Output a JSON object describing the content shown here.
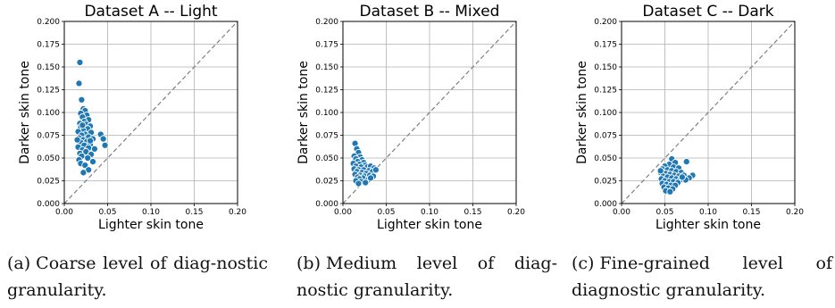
{
  "chart_data": [
    {
      "type": "scatter",
      "title": "Dataset A -- Light",
      "xlabel": "Lighter skin tone",
      "ylabel": "Darker skin tone",
      "xlim": [
        0,
        0.2
      ],
      "ylim": [
        0,
        0.2
      ],
      "xticks": [
        "0.00",
        "0.05",
        "0.10",
        "0.15",
        "0.20"
      ],
      "yticks": [
        "0.000",
        "0.025",
        "0.050",
        "0.075",
        "0.100",
        "0.125",
        "0.150",
        "0.175",
        "0.200"
      ],
      "grid": true,
      "reference_line": "diagonal y = x (dashed gray)",
      "marker_color": "#1f77b4",
      "points": [
        [
          0.018,
          0.155
        ],
        [
          0.017,
          0.132
        ],
        [
          0.02,
          0.114
        ],
        [
          0.022,
          0.104
        ],
        [
          0.024,
          0.102
        ],
        [
          0.019,
          0.099
        ],
        [
          0.026,
          0.097
        ],
        [
          0.021,
          0.095
        ],
        [
          0.028,
          0.092
        ],
        [
          0.023,
          0.09
        ],
        [
          0.018,
          0.088
        ],
        [
          0.025,
          0.087
        ],
        [
          0.03,
          0.085
        ],
        [
          0.019,
          0.084
        ],
        [
          0.027,
          0.082
        ],
        [
          0.022,
          0.08
        ],
        [
          0.016,
          0.079
        ],
        [
          0.031,
          0.078
        ],
        [
          0.024,
          0.076
        ],
        [
          0.02,
          0.075
        ],
        [
          0.042,
          0.076
        ],
        [
          0.045,
          0.071
        ],
        [
          0.028,
          0.073
        ],
        [
          0.017,
          0.072
        ],
        [
          0.033,
          0.071
        ],
        [
          0.022,
          0.07
        ],
        [
          0.026,
          0.068
        ],
        [
          0.019,
          0.067
        ],
        [
          0.047,
          0.064
        ],
        [
          0.03,
          0.065
        ],
        [
          0.023,
          0.064
        ],
        [
          0.016,
          0.062
        ],
        [
          0.028,
          0.061
        ],
        [
          0.021,
          0.059
        ],
        [
          0.025,
          0.057
        ],
        [
          0.018,
          0.055
        ],
        [
          0.031,
          0.054
        ],
        [
          0.02,
          0.052
        ],
        [
          0.027,
          0.05
        ],
        [
          0.017,
          0.048
        ],
        [
          0.033,
          0.046
        ],
        [
          0.019,
          0.044
        ],
        [
          0.024,
          0.042
        ],
        [
          0.028,
          0.037
        ],
        [
          0.022,
          0.034
        ],
        [
          0.03,
          0.069
        ],
        [
          0.015,
          0.07
        ],
        [
          0.035,
          0.06
        ],
        [
          0.021,
          0.086
        ]
      ]
    },
    {
      "type": "scatter",
      "title": "Dataset B -- Mixed",
      "xlabel": "Lighter skin tone",
      "ylabel": "Darker skin tone",
      "xlim": [
        0,
        0.2
      ],
      "ylim": [
        0,
        0.2
      ],
      "xticks": [
        "0.00",
        "0.05",
        "0.10",
        "0.15",
        "0.20"
      ],
      "yticks": [
        "0.000",
        "0.025",
        "0.050",
        "0.075",
        "0.100",
        "0.125",
        "0.150",
        "0.175",
        "0.200"
      ],
      "grid": true,
      "reference_line": "diagonal y = x (dashed gray)",
      "marker_color": "#1f77b4",
      "points": [
        [
          0.014,
          0.066
        ],
        [
          0.016,
          0.06
        ],
        [
          0.018,
          0.056
        ],
        [
          0.013,
          0.052
        ],
        [
          0.02,
          0.051
        ],
        [
          0.015,
          0.049
        ],
        [
          0.022,
          0.048
        ],
        [
          0.017,
          0.046
        ],
        [
          0.024,
          0.045
        ],
        [
          0.012,
          0.044
        ],
        [
          0.019,
          0.043
        ],
        [
          0.026,
          0.042
        ],
        [
          0.015,
          0.041
        ],
        [
          0.021,
          0.04
        ],
        [
          0.028,
          0.04
        ],
        [
          0.032,
          0.041
        ],
        [
          0.036,
          0.039
        ],
        [
          0.013,
          0.038
        ],
        [
          0.018,
          0.037
        ],
        [
          0.024,
          0.037
        ],
        [
          0.03,
          0.036
        ],
        [
          0.034,
          0.035
        ],
        [
          0.038,
          0.037
        ],
        [
          0.016,
          0.035
        ],
        [
          0.022,
          0.034
        ],
        [
          0.027,
          0.033
        ],
        [
          0.014,
          0.032
        ],
        [
          0.02,
          0.031
        ],
        [
          0.025,
          0.03
        ],
        [
          0.031,
          0.031
        ],
        [
          0.017,
          0.029
        ],
        [
          0.023,
          0.028
        ],
        [
          0.035,
          0.03
        ],
        [
          0.019,
          0.027
        ],
        [
          0.029,
          0.026
        ],
        [
          0.015,
          0.025
        ],
        [
          0.021,
          0.024
        ],
        [
          0.026,
          0.023
        ],
        [
          0.018,
          0.022
        ],
        [
          0.032,
          0.028
        ]
      ]
    },
    {
      "type": "scatter",
      "title": "Dataset C -- Dark",
      "xlabel": "Lighter skin tone",
      "ylabel": "Darker skin tone",
      "xlim": [
        0,
        0.2
      ],
      "ylim": [
        0,
        0.2
      ],
      "xticks": [
        "0.00",
        "0.05",
        "0.10",
        "0.15",
        "0.20"
      ],
      "yticks": [
        "0.000",
        "0.025",
        "0.050",
        "0.075",
        "0.100",
        "0.125",
        "0.150",
        "0.175",
        "0.200"
      ],
      "grid": true,
      "reference_line": "diagonal y = x (dashed gray)",
      "marker_color": "#1f77b4",
      "points": [
        [
          0.058,
          0.049
        ],
        [
          0.062,
          0.045
        ],
        [
          0.075,
          0.046
        ],
        [
          0.055,
          0.043
        ],
        [
          0.05,
          0.041
        ],
        [
          0.06,
          0.04
        ],
        [
          0.066,
          0.039
        ],
        [
          0.047,
          0.038
        ],
        [
          0.053,
          0.037
        ],
        [
          0.058,
          0.036
        ],
        [
          0.063,
          0.035
        ],
        [
          0.069,
          0.034
        ],
        [
          0.045,
          0.034
        ],
        [
          0.051,
          0.033
        ],
        [
          0.056,
          0.032
        ],
        [
          0.061,
          0.031
        ],
        [
          0.066,
          0.03
        ],
        [
          0.072,
          0.031
        ],
        [
          0.082,
          0.031
        ],
        [
          0.078,
          0.028
        ],
        [
          0.048,
          0.03
        ],
        [
          0.053,
          0.029
        ],
        [
          0.058,
          0.028
        ],
        [
          0.063,
          0.027
        ],
        [
          0.068,
          0.026
        ],
        [
          0.074,
          0.026
        ],
        [
          0.046,
          0.027
        ],
        [
          0.05,
          0.025
        ],
        [
          0.055,
          0.024
        ],
        [
          0.06,
          0.024
        ],
        [
          0.065,
          0.023
        ],
        [
          0.047,
          0.022
        ],
        [
          0.052,
          0.021
        ],
        [
          0.057,
          0.02
        ],
        [
          0.062,
          0.02
        ],
        [
          0.049,
          0.018
        ],
        [
          0.054,
          0.017
        ],
        [
          0.059,
          0.016
        ],
        [
          0.051,
          0.014
        ],
        [
          0.056,
          0.013
        ],
        [
          0.045,
          0.036
        ],
        [
          0.07,
          0.029
        ]
      ]
    }
  ],
  "captions": [
    {
      "label": "(a)",
      "text": "Coarse level of diag-nostic granularity."
    },
    {
      "label": "(b)",
      "text": "Medium level of diag-nostic granularity."
    },
    {
      "label": "(c)",
      "text": "Fine-grained level of diagnostic granularity."
    }
  ]
}
